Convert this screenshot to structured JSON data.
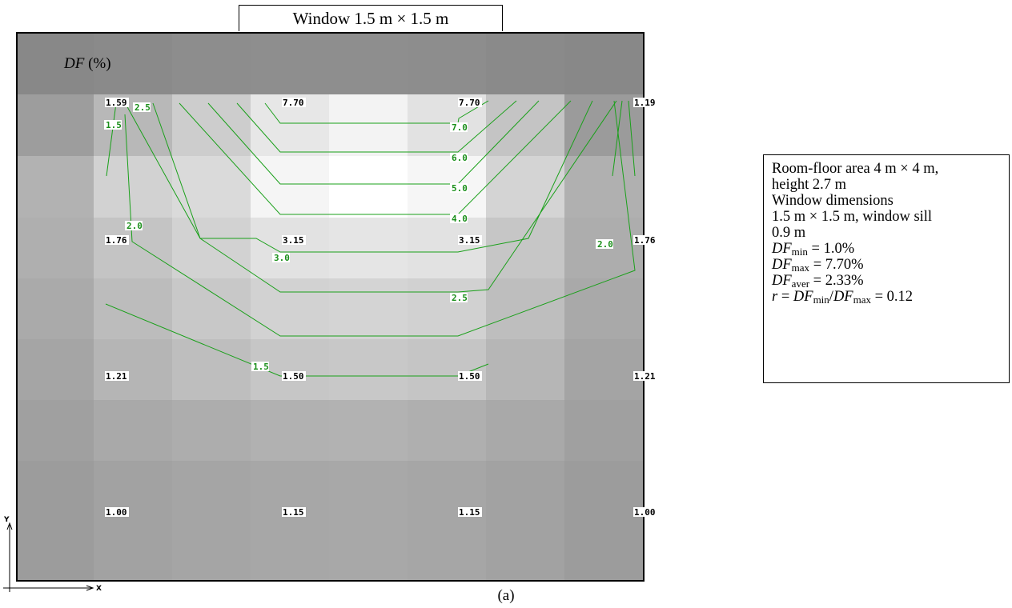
{
  "window_label": "Window 1.5 m × 1.5 m",
  "df_label_symbol": "DF",
  "df_label_unit": " (%)",
  "caption": "(a)",
  "axis_labels": {
    "y": "Y",
    "x": "X"
  },
  "info": {
    "line1": "Room-floor area 4 m × 4 m,",
    "line2": "height 2.7 m",
    "line3": "Window dimensions",
    "line4": "1.5 m × 1.5 m, window sill",
    "line5": "0.9 m",
    "dfmin": {
      "sym": "DF",
      "sub": "min",
      "rest": " = 1.0%"
    },
    "dfmax": {
      "sym": "DF",
      "sub": "max",
      "rest": " = 7.70%"
    },
    "dfaver": {
      "sym": "DF",
      "sub": "aver",
      "rest": " = 2.33%"
    },
    "ratio": {
      "r": "r",
      "eq": " = ",
      "sym1": "DF",
      "sub1": "min",
      "slash": "/",
      "sym2": "DF",
      "sub2": "max",
      "rest": " = 0.12"
    }
  },
  "grid": {
    "rows": 8,
    "cols": 8,
    "shades": [
      [
        "#888888",
        "#8a8a8a",
        "#8d8d8d",
        "#8e8e8e",
        "#8e8e8e",
        "#8d8d8d",
        "#8a8a8a",
        "#888888"
      ],
      [
        "#9d9d9d",
        "#b8b8b8",
        "#cdcdcd",
        "#e7e7e7",
        "#f3f3f3",
        "#e2e2e2",
        "#c4c4c4",
        "#9b9b9b"
      ],
      [
        "#b2b2b2",
        "#d2d2d2",
        "#dadada",
        "#f5f5f5",
        "#ffffff",
        "#f6f6f6",
        "#d4d4d4",
        "#b0b0b0"
      ],
      [
        "#afafaf",
        "#c4c4c4",
        "#d2d2d2",
        "#e2e2e2",
        "#e5e5e5",
        "#e2e2e2",
        "#c6c6c6",
        "#adadad"
      ],
      [
        "#aaaaaa",
        "#bcbcbc",
        "#c8c8c8",
        "#d2d2d2",
        "#d4d4d4",
        "#d1d1d1",
        "#bebebe",
        "#a9a9a9"
      ],
      [
        "#a5a5a5",
        "#b5b5b5",
        "#bebebe",
        "#c6c6c6",
        "#c8c8c8",
        "#c5c5c5",
        "#b6b6b6",
        "#a4a4a4"
      ],
      [
        "#a0a0a0",
        "#a9a9a9",
        "#adadad",
        "#b1b1b1",
        "#b2b2b2",
        "#afafaf",
        "#a9a9a9",
        "#a0a0a0"
      ],
      [
        "#9c9c9c",
        "#a2a2a2",
        "#a5a5a5",
        "#a7a7a7",
        "#a8a8a8",
        "#a6a6a6",
        "#a2a2a2",
        "#9c9c9c"
      ]
    ]
  },
  "point_values": [
    {
      "label": "1.59",
      "row": 0,
      "col": 0
    },
    {
      "label": "7.70",
      "row": 0,
      "col": 1
    },
    {
      "label": "7.70",
      "row": 0,
      "col": 2
    },
    {
      "label": "1.19",
      "row": 0,
      "col": 3
    },
    {
      "label": "1.76",
      "row": 1,
      "col": 0
    },
    {
      "label": "3.15",
      "row": 1,
      "col": 1
    },
    {
      "label": "3.15",
      "row": 1,
      "col": 2
    },
    {
      "label": "1.76",
      "row": 1,
      "col": 3
    },
    {
      "label": "1.21",
      "row": 2,
      "col": 0
    },
    {
      "label": "1.50",
      "row": 2,
      "col": 1
    },
    {
      "label": "1.50",
      "row": 2,
      "col": 2
    },
    {
      "label": "1.21",
      "row": 2,
      "col": 3
    },
    {
      "label": "1.00",
      "row": 3,
      "col": 0
    },
    {
      "label": "1.15",
      "row": 3,
      "col": 1
    },
    {
      "label": "1.15",
      "row": 3,
      "col": 2
    },
    {
      "label": "1.00",
      "row": 3,
      "col": 3
    }
  ],
  "contours": [
    {
      "level": "7.0",
      "id": "contour-7-0"
    },
    {
      "level": "6.0",
      "id": "contour-6-0"
    },
    {
      "level": "5.0",
      "id": "contour-5-0"
    },
    {
      "level": "4.0",
      "id": "contour-4-0"
    },
    {
      "level": "3.0",
      "id": "contour-3-0"
    },
    {
      "level": "2.5",
      "id": "contour-2-5"
    },
    {
      "level": "2.0",
      "id": "contour-2-0"
    },
    {
      "level": "1.5",
      "id": "contour-1-5"
    }
  ],
  "colors": {
    "contour": "#1aa01a",
    "contour_label": "#1a8f1a",
    "border": "#000000"
  }
}
